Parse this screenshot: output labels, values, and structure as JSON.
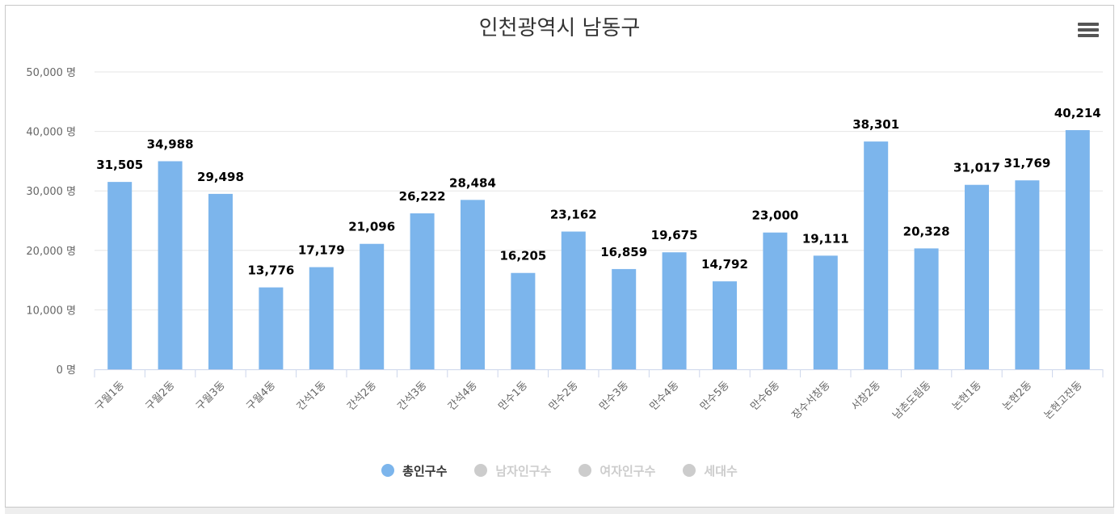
{
  "title": "인천광역시 남동구",
  "chart_data": {
    "type": "bar",
    "title": "인천광역시 남동구",
    "xlabel": "",
    "ylabel": "",
    "unit": "명",
    "ylim": [
      0,
      50000
    ],
    "yticks": [
      0,
      10000,
      20000,
      30000,
      40000,
      50000
    ],
    "ytick_labels": [
      "0 명",
      "10,000 명",
      "20,000 명",
      "30,000 명",
      "40,000 명",
      "50,000 명"
    ],
    "categories": [
      "구월1동",
      "구월2동",
      "구월3동",
      "구월4동",
      "간석1동",
      "간석2동",
      "간석3동",
      "간석4동",
      "만수1동",
      "만수2동",
      "만수3동",
      "만수4동",
      "만수5동",
      "만수6동",
      "장수서창동",
      "서창2동",
      "남촌도림동",
      "논현1동",
      "논현2동",
      "논현고잔동"
    ],
    "series": [
      {
        "name": "총인구수",
        "values": [
          31505,
          34988,
          29498,
          13776,
          17179,
          21096,
          26222,
          28484,
          16205,
          23162,
          16859,
          19675,
          14792,
          23000,
          19111,
          38301,
          20328,
          31017,
          31769,
          40214
        ],
        "labels": [
          "31,505",
          "34,988",
          "29,498",
          "13,776",
          "17,179",
          "21,096",
          "26,222",
          "28,484",
          "16,205",
          "23,162",
          "16,859",
          "19,675",
          "14,792",
          "23,000",
          "19,111",
          "38,301",
          "20,328",
          "31,017",
          "31,769",
          "40,214"
        ]
      }
    ],
    "grid": true,
    "legend_position": "bottom-center"
  },
  "legend": [
    {
      "label": "총인구수",
      "active": true,
      "color": "#7cb5ec"
    },
    {
      "label": "남자인구수",
      "active": false,
      "color": "#cccccc"
    },
    {
      "label": "여자인구수",
      "active": false,
      "color": "#cccccc"
    },
    {
      "label": "세대수",
      "active": false,
      "color": "#cccccc"
    }
  ],
  "colors": {
    "bar": "#7cb5ec",
    "grid": "#e6e6e6",
    "axis_line": "#ccd6eb",
    "tick_text": "#666666",
    "data_label": "#000000",
    "legend_active_text": "#333333",
    "legend_inactive_text": "#cccccc"
  }
}
